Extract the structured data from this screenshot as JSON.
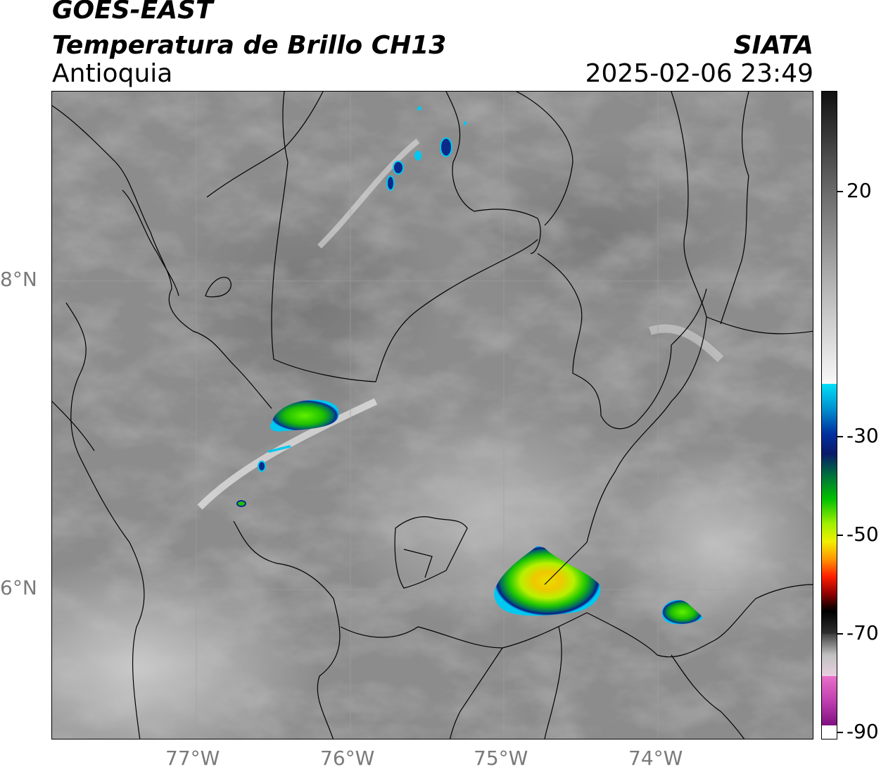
{
  "header": {
    "satellite": "GOES-EAST",
    "product": "Temperatura de Brillo CH13",
    "region": "Antioquia",
    "organization": "SIATA",
    "datetime": "2025-02-06 23:49"
  },
  "map": {
    "longitude_ticks": [
      "77°W",
      "76°W",
      "75°W",
      "74°W"
    ],
    "latitude_ticks": [
      "8°N",
      "6°N"
    ],
    "background_color": "#8a8a8a",
    "border_color": "#000000",
    "gridline_color": "#9a9a9a"
  },
  "colorbar": {
    "tick_labels": [
      "20",
      "-30",
      "-50",
      "-70",
      "-90"
    ],
    "colors": {
      "warm_gray_top": "#1a1a1a",
      "mid_gray": "#8c8c8c",
      "white": "#f5f5f5",
      "cyan": "#00d8f0",
      "dark_blue": "#0a1a7a",
      "green": "#00c000",
      "yellow": "#f0f000",
      "orange": "#ff9000",
      "red": "#e00000",
      "dark_red": "#600000",
      "black": "#000000",
      "pink": "#e060c0",
      "purple": "#8a1a8a"
    }
  }
}
